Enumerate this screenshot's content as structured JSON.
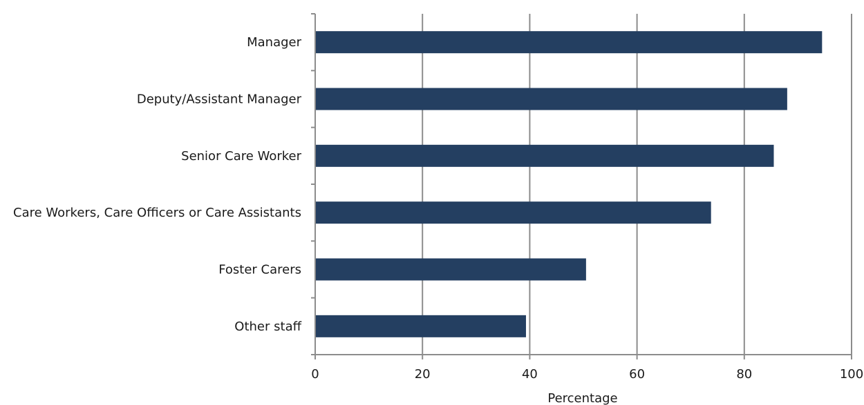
{
  "chart_data": {
    "type": "bar",
    "orientation": "horizontal",
    "categories": [
      "Manager",
      "Deputy/Assistant Manager",
      "Senior Care Worker",
      "Care Workers, Care Officers or Care Assistants",
      "Foster Carers",
      "Other staff"
    ],
    "values": [
      94.5,
      88.0,
      85.5,
      73.8,
      50.5,
      39.3
    ],
    "title": "",
    "xlabel": "Percentage",
    "ylabel": "",
    "xlim": [
      0,
      100
    ],
    "xticks": [
      0,
      20,
      40,
      60,
      80,
      100
    ],
    "grid": true,
    "bar_color": "#243f61",
    "grid_color": "#8c8c8c"
  }
}
